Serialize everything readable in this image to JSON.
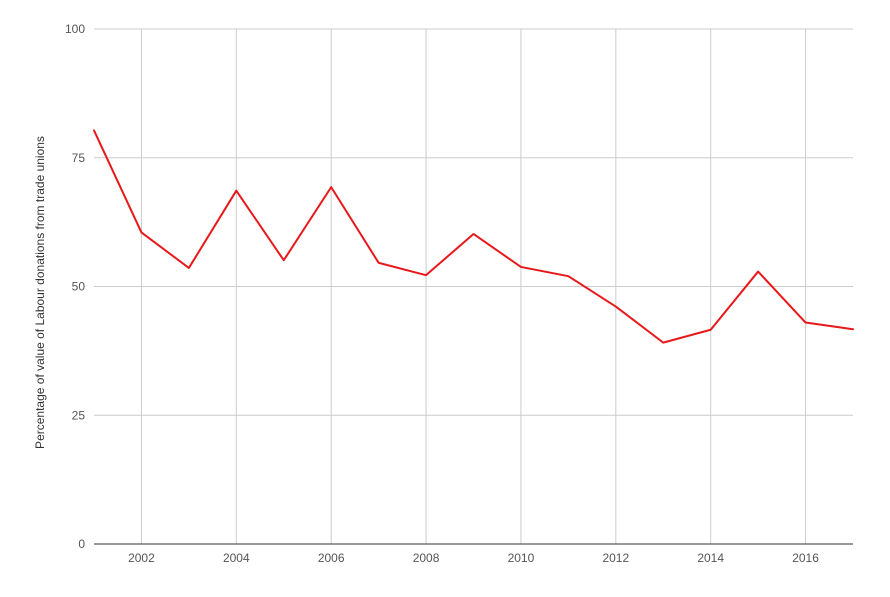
{
  "chart_data": {
    "type": "line",
    "title": "",
    "xlabel": "",
    "ylabel": "Percentage of value of Labour donations from trade unions",
    "xlim": [
      2001,
      2017
    ],
    "ylim": [
      0,
      100
    ],
    "x_ticks": [
      2002,
      2004,
      2006,
      2008,
      2010,
      2012,
      2014,
      2016
    ],
    "y_ticks": [
      0,
      25,
      50,
      75,
      100
    ],
    "grid": true,
    "legend": "none",
    "series": [
      {
        "color": "#e8181a",
        "x": [
          2001,
          2002,
          2003,
          2004,
          2005,
          2006,
          2007,
          2008,
          2009,
          2010,
          2011,
          2012,
          2013,
          2014,
          2015,
          2016,
          2017
        ],
        "y": [
          80.3,
          60.5,
          53.6,
          68.6,
          55.1,
          69.3,
          54.6,
          52.2,
          60.2,
          53.8,
          52.0,
          46.1,
          39.1,
          41.6,
          52.9,
          43.0,
          41.7
        ]
      }
    ]
  }
}
